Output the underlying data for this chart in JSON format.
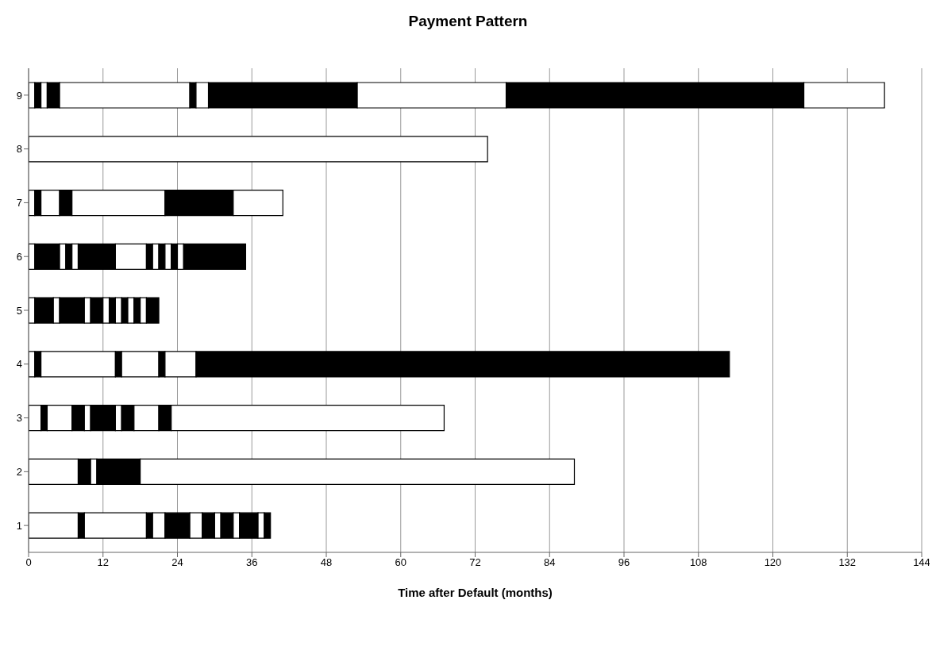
{
  "chart_data": {
    "type": "bar",
    "title": "Payment Pattern",
    "xlabel": "Time after Default (months)",
    "orientation": "horizontal",
    "stacked": true,
    "grid": "x",
    "legend": false,
    "categories": [
      "9",
      "8",
      "7",
      "6",
      "5",
      "4",
      "3",
      "2",
      "1"
    ],
    "xlim": [
      0,
      144
    ],
    "xticks": [
      0,
      12,
      24,
      36,
      48,
      60,
      72,
      84,
      96,
      108,
      120,
      132,
      144
    ],
    "series": [
      {
        "color": "#ffffff",
        "values": [
          1,
          74,
          1,
          1,
          1,
          1,
          2,
          8,
          8
        ]
      },
      {
        "color": "#000000",
        "values": [
          1,
          null,
          1,
          4,
          3,
          1,
          1,
          2,
          1
        ]
      },
      {
        "color": "#ffffff",
        "values": [
          1,
          null,
          3,
          1,
          1,
          12,
          4,
          1,
          10
        ]
      },
      {
        "color": "#000000",
        "values": [
          2,
          null,
          2,
          1,
          4,
          1,
          2,
          7,
          1
        ]
      },
      {
        "color": "#ffffff",
        "values": [
          21,
          null,
          15,
          1,
          1,
          6,
          1,
          70,
          2
        ]
      },
      {
        "color": "#000000",
        "values": [
          1,
          null,
          11,
          6,
          2,
          1,
          4,
          null,
          4
        ]
      },
      {
        "color": "#ffffff",
        "values": [
          2,
          null,
          8,
          5,
          1,
          5,
          1,
          null,
          2
        ]
      },
      {
        "color": "#000000",
        "values": [
          24,
          null,
          null,
          1,
          1,
          86,
          2,
          null,
          2
        ]
      },
      {
        "color": "#ffffff",
        "values": [
          24,
          null,
          null,
          1,
          1,
          null,
          4,
          null,
          1
        ]
      },
      {
        "color": "#000000",
        "values": [
          48,
          null,
          null,
          1,
          1,
          null,
          2,
          null,
          2
        ]
      },
      {
        "color": "#ffffff",
        "values": [
          13,
          null,
          null,
          1,
          1,
          null,
          44,
          null,
          1
        ]
      },
      {
        "color": "#000000",
        "values": [
          null,
          null,
          null,
          1,
          1,
          null,
          null,
          null,
          3
        ]
      },
      {
        "color": "#ffffff",
        "values": [
          null,
          null,
          null,
          1,
          1,
          null,
          null,
          null,
          1
        ]
      },
      {
        "color": "#000000",
        "values": [
          null,
          null,
          null,
          10,
          2,
          null,
          null,
          null,
          1
        ]
      }
    ]
  }
}
